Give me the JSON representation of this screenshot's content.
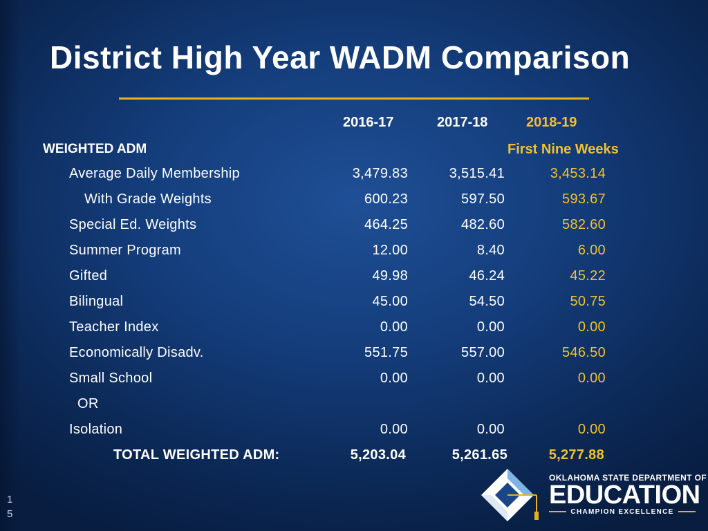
{
  "slide": {
    "title": "District High Year WADM Comparison",
    "page_number": [
      "1",
      "5"
    ]
  },
  "table": {
    "columns": [
      "2016-17",
      "2017-18",
      "2018-19"
    ],
    "section_label": "WEIGHTED  ADM",
    "current_period": "First Nine Weeks",
    "rows": [
      {
        "label": "Average  Daily  Membership",
        "values": [
          "3,479.83",
          "3,515.41",
          "3,453.14"
        ]
      },
      {
        "label": "With  Grade  Weights",
        "values": [
          "600.23",
          "597.50",
          "593.67"
        ]
      },
      {
        "label": "Special  Ed.  Weights",
        "values": [
          "464.25",
          "482.60",
          "582.60"
        ]
      },
      {
        "label": "Summer  Program",
        "values": [
          "12.00",
          "8.40",
          "6.00"
        ]
      },
      {
        "label": "Gifted",
        "values": [
          "49.98",
          "46.24",
          "45.22"
        ]
      },
      {
        "label": "Bilingual",
        "values": [
          "45.00",
          "54.50",
          "50.75"
        ]
      },
      {
        "label": "Teacher  Index",
        "values": [
          "0.00",
          "0.00",
          "0.00"
        ]
      },
      {
        "label": "Economically  Disadv.",
        "values": [
          "551.75",
          "557.00",
          "546.50"
        ]
      },
      {
        "label": "Small  School",
        "values": [
          "0.00",
          "0.00",
          "0.00"
        ]
      },
      {
        "label": "OR",
        "values": [
          "",
          "",
          ""
        ]
      },
      {
        "label": "Isolation",
        "values": [
          "0.00",
          "0.00",
          "0.00"
        ]
      }
    ],
    "total": {
      "label": "TOTAL  WEIGHTED  ADM:",
      "values": [
        "5,203.04",
        "5,261.65",
        "5,277.88"
      ]
    }
  },
  "logo": {
    "organization": "OKLAHOMA STATE DEPARTMENT OF",
    "wordmark": "EDUCATION",
    "tagline": "CHAMPION EXCELLENCE",
    "icon": "diamond-tassel-icon"
  },
  "colors": {
    "accent_gold": "#e5b31f",
    "highlight_text": "#f2c12e",
    "background": "#143d7b"
  }
}
